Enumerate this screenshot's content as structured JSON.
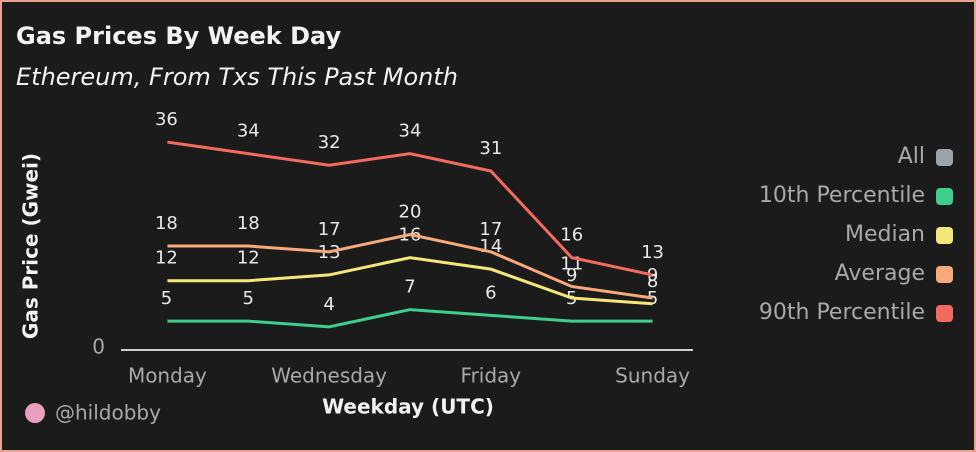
{
  "chart_data": {
    "type": "line",
    "title": "Gas Prices By Week Day",
    "subtitle": "Ethereum, From Txs This Past Month",
    "x_label": "Weekday (UTC)",
    "y_label": "Gas Price (Gwei)",
    "author": "@hildobby",
    "categories": [
      "Monday",
      null,
      "Wednesday",
      null,
      "Friday",
      null,
      "Sunday"
    ],
    "series": [
      {
        "name": "All",
        "color": "#9ca3ab",
        "values": [
          null,
          null,
          null,
          null,
          null,
          null,
          null
        ]
      },
      {
        "name": "10th Percentile",
        "color": "#3ecf8e",
        "values": [
          5,
          5,
          4,
          7,
          6,
          5,
          5
        ]
      },
      {
        "name": "Median",
        "color": "#f5e67a",
        "values": [
          12,
          12,
          13,
          16,
          14,
          9,
          8
        ]
      },
      {
        "name": "Average",
        "color": "#f7a97a",
        "values": [
          18,
          18,
          17,
          20,
          17,
          11,
          9
        ]
      },
      {
        "name": "90th Percentile",
        "color": "#f26b5e",
        "values": [
          36,
          34,
          32,
          34,
          31,
          16,
          13
        ]
      }
    ],
    "ylim": [
      0,
      40
    ],
    "yticks": [
      0
    ],
    "legend": "right"
  }
}
